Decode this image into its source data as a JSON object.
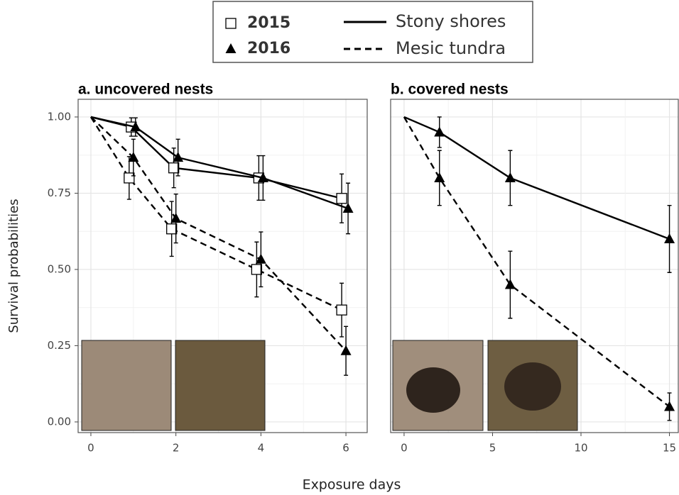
{
  "legend": {
    "markers": [
      {
        "label": "2015",
        "marker": "square"
      },
      {
        "label": "2016",
        "marker": "triangle"
      }
    ],
    "lines": [
      {
        "label": "Stony shores",
        "dash": false
      },
      {
        "label": "Mesic tundra",
        "dash": true
      }
    ]
  },
  "ylabel": "Survival probabilities",
  "xlabel": "Exposure days",
  "chart_data": [
    {
      "type": "line",
      "title": "a. uncovered nests",
      "xlim": [
        -0.3,
        6.5
      ],
      "ylim": [
        -0.035,
        1.058
      ],
      "xticks": [
        0,
        2,
        4,
        6
      ],
      "yticks": [
        {
          "value": 0,
          "label": "0.00"
        },
        {
          "value": 0.25,
          "label": "0.25"
        },
        {
          "value": 0.5,
          "label": "0.50"
        },
        {
          "value": 0.75,
          "label": "0.75"
        },
        {
          "value": 1,
          "label": "1.00"
        }
      ],
      "show_yticklabels": true,
      "grid": true,
      "color": "#000000",
      "series": [
        {
          "marker": "square",
          "dash": false,
          "x": [
            0,
            0.95,
            1.95,
            3.95,
            5.9
          ],
          "values": [
            1.0,
            0.967,
            0.833,
            0.8,
            0.733
          ],
          "errors": [
            null,
            0.03,
            0.065,
            0.073,
            0.08
          ]
        },
        {
          "marker": "triangle",
          "dash": false,
          "x": [
            0,
            1.05,
            2.05,
            4.05,
            6.05
          ],
          "values": [
            1.0,
            0.967,
            0.867,
            0.8,
            0.7
          ],
          "errors": [
            null,
            0.03,
            0.06,
            0.073,
            0.083
          ]
        },
        {
          "marker": "square",
          "dash": true,
          "x": [
            0,
            0.9,
            1.9,
            3.9,
            5.9
          ],
          "values": [
            1.0,
            0.8,
            0.633,
            0.5,
            0.367
          ],
          "errors": [
            null,
            0.07,
            0.09,
            0.09,
            0.088
          ]
        },
        {
          "marker": "triangle",
          "dash": true,
          "x": [
            0,
            1.0,
            2.0,
            4.0,
            6.0
          ],
          "values": [
            1.0,
            0.867,
            0.667,
            0.533,
            0.233
          ],
          "errors": [
            null,
            0.06,
            0.08,
            0.09,
            0.08
          ]
        }
      ]
    },
    {
      "type": "line",
      "title": "b. covered nests",
      "xlim": [
        -0.76,
        15.5
      ],
      "ylim": [
        -0.035,
        1.058
      ],
      "xticks": [
        0,
        5,
        10,
        15
      ],
      "yticks": [
        0,
        0.25,
        0.5,
        0.75,
        1
      ],
      "show_yticklabels": false,
      "grid": true,
      "color": "#000000",
      "series": [
        {
          "marker": "triangle",
          "dash": false,
          "x": [
            0,
            2,
            6,
            15
          ],
          "values": [
            1.0,
            0.95,
            0.8,
            0.6
          ],
          "errors": [
            null,
            0.05,
            0.09,
            0.11
          ]
        },
        {
          "marker": "triangle",
          "dash": true,
          "x": [
            0,
            2,
            6,
            15
          ],
          "values": [
            1.0,
            0.8,
            0.45,
            0.05
          ],
          "errors": [
            null,
            0.09,
            0.11,
            0.045
          ]
        }
      ]
    }
  ]
}
